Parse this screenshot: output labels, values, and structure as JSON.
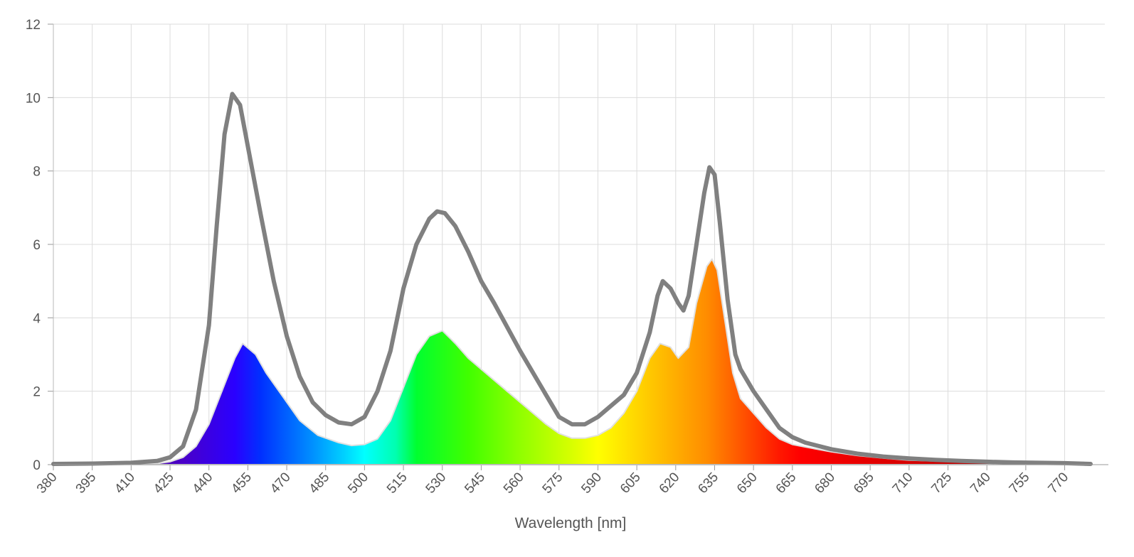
{
  "chart_data": {
    "type": "area",
    "title": "",
    "xlabel": "Wavelength [nm]",
    "ylabel": "",
    "xlim": [
      380,
      780
    ],
    "ylim": [
      0,
      12
    ],
    "x_ticks": [
      380,
      395,
      410,
      425,
      440,
      455,
      470,
      485,
      500,
      515,
      530,
      545,
      560,
      575,
      590,
      605,
      620,
      635,
      650,
      665,
      680,
      695,
      710,
      725,
      740,
      755,
      770
    ],
    "y_ticks": [
      0,
      2,
      4,
      6,
      8,
      10,
      12
    ],
    "grid": true,
    "legend": "none",
    "colors": {
      "outline_series": "#808080",
      "filled_series": "spectral"
    },
    "series": [
      {
        "style": "spectral-fill",
        "x": [
          380,
          395,
          410,
          420,
          425,
          430,
          435,
          440,
          445,
          450,
          453,
          458,
          462,
          468,
          475,
          482,
          490,
          495,
          500,
          505,
          510,
          515,
          520,
          525,
          530,
          535,
          540,
          550,
          560,
          570,
          575,
          580,
          585,
          590,
          595,
          600,
          605,
          610,
          614,
          618,
          621,
          625,
          628,
          632,
          634,
          636,
          639,
          642,
          645,
          650,
          655,
          660,
          665,
          670,
          680,
          690,
          700,
          710,
          720,
          730,
          740,
          750,
          760,
          770,
          780
        ],
        "y": [
          0.0,
          0.0,
          0.01,
          0.03,
          0.08,
          0.2,
          0.5,
          1.1,
          2.0,
          2.9,
          3.3,
          3.0,
          2.5,
          1.9,
          1.2,
          0.8,
          0.6,
          0.52,
          0.55,
          0.7,
          1.2,
          2.1,
          3.0,
          3.5,
          3.65,
          3.3,
          2.9,
          2.3,
          1.7,
          1.1,
          0.85,
          0.72,
          0.72,
          0.8,
          1.0,
          1.4,
          2.0,
          2.9,
          3.3,
          3.2,
          2.9,
          3.2,
          4.4,
          5.4,
          5.6,
          5.3,
          3.9,
          2.5,
          1.8,
          1.4,
          1.0,
          0.7,
          0.55,
          0.48,
          0.35,
          0.25,
          0.18,
          0.12,
          0.1,
          0.08,
          0.06,
          0.05,
          0.04,
          0.04,
          0.02
        ]
      },
      {
        "style": "outline",
        "x": [
          380,
          395,
          410,
          420,
          425,
          430,
          435,
          440,
          443,
          446,
          449,
          452,
          456,
          460,
          465,
          470,
          475,
          480,
          485,
          490,
          495,
          500,
          505,
          510,
          515,
          520,
          525,
          528,
          531,
          535,
          540,
          545,
          550,
          560,
          570,
          575,
          580,
          585,
          590,
          595,
          600,
          605,
          610,
          613,
          615,
          618,
          621,
          623,
          625,
          628,
          631,
          633,
          635,
          637,
          640,
          643,
          645,
          650,
          655,
          660,
          665,
          670,
          680,
          690,
          700,
          710,
          720,
          730,
          740,
          750,
          760,
          770,
          780
        ],
        "y": [
          0.02,
          0.03,
          0.05,
          0.1,
          0.2,
          0.5,
          1.5,
          3.8,
          6.5,
          9.0,
          10.1,
          9.8,
          8.3,
          6.8,
          5.0,
          3.5,
          2.4,
          1.7,
          1.35,
          1.15,
          1.1,
          1.3,
          2.0,
          3.1,
          4.8,
          6.0,
          6.7,
          6.9,
          6.85,
          6.5,
          5.8,
          5.0,
          4.4,
          3.1,
          1.9,
          1.3,
          1.1,
          1.1,
          1.3,
          1.6,
          1.9,
          2.5,
          3.6,
          4.6,
          5.0,
          4.8,
          4.4,
          4.2,
          4.6,
          6.0,
          7.4,
          8.1,
          7.9,
          6.6,
          4.5,
          3.0,
          2.6,
          2.0,
          1.5,
          1.0,
          0.75,
          0.6,
          0.42,
          0.3,
          0.22,
          0.17,
          0.13,
          0.1,
          0.08,
          0.06,
          0.05,
          0.04,
          0.02
        ]
      }
    ]
  }
}
